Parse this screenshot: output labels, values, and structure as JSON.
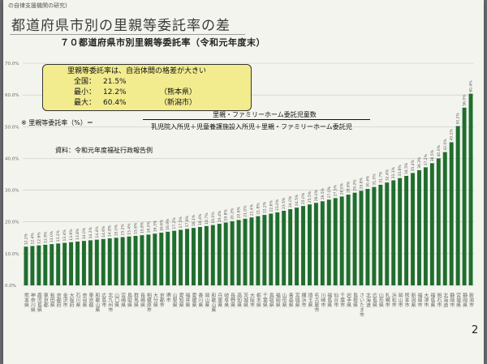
{
  "header": {
    "crumb": "の自律支援機関の研究)",
    "title": "都道府県市別の里親等委託率の差"
  },
  "callout": {
    "heading": "里親等委託率は、自治体間の格差が大きい",
    "rows": [
      {
        "key": "全国：",
        "value": "21.5%",
        "note": ""
      },
      {
        "key": "最小：",
        "value": "12.2%",
        "note": "（熊本県）"
      },
      {
        "key": "最大：",
        "value": "60.4%",
        "note": "（新潟市）"
      }
    ]
  },
  "formula": {
    "lhs": "※ 里親等委託率（%）＝",
    "numerator": "里親・ファミリーホーム委託児童数",
    "denominator": "乳児院入所児＋児童養護施設入所児＋里親・ファミリーホーム委託児"
  },
  "source": "資料：令和元年度福祉行政報告例",
  "page_number": "2",
  "colors": {
    "bar": "#1f6e2e",
    "callout": "#f2ec8f"
  },
  "chart_data": {
    "type": "bar",
    "title": "７０都道府県市別里親等委託率（令和元年度末）",
    "ylim": [
      0,
      70
    ],
    "ytick_labels": [
      "0.0%",
      "10.0%",
      "20.0%",
      "30.0%",
      "40.0%",
      "50.0%",
      "60.0%",
      "70.0%"
    ],
    "grid": true,
    "categories": [
      "熊本県",
      "神奈川県",
      "鹿児島県",
      "東京都",
      "秋田県",
      "京都府",
      "金沢市",
      "大阪府",
      "石川県",
      "奈良県",
      "東京都",
      "和歌山県",
      "広島市",
      "北九州市",
      "山口県",
      "宮崎県",
      "鳥取県",
      "群馬県",
      "長崎県",
      "相模原市",
      "大分県",
      "京都市",
      "堺市",
      "山梨県",
      "愛知県",
      "福井県",
      "愛媛県",
      "香川県",
      "岡山県",
      "和歌山県",
      "兵庫県",
      "岐阜県",
      "長野県",
      "高知県",
      "茨城県",
      "大阪市",
      "栃木県",
      "千葉県",
      "鳥取県",
      "福岡県",
      "山形県",
      "青森県",
      "宮城県",
      "横浜市",
      "埼玉県",
      "名古屋市",
      "川崎市",
      "福島県",
      "仙台市",
      "千葉市",
      "岩手県",
      "島根県",
      "さいたま市",
      "北海道",
      "広島県",
      "山形県",
      "札幌市",
      "浜松市",
      "岡山市",
      "熊本市",
      "新潟県",
      "福岡市",
      "大津市",
      "福島県",
      "明石市",
      "北海道",
      "静岡市",
      "宮城県",
      "静岡県",
      "新潟市"
    ],
    "values": [
      12.2,
      12.4,
      12.6,
      12.8,
      13.0,
      13.2,
      13.4,
      13.6,
      13.8,
      14.0,
      14.2,
      14.4,
      14.6,
      14.8,
      15.0,
      15.2,
      15.4,
      15.6,
      15.8,
      16.0,
      16.3,
      16.6,
      16.9,
      17.2,
      17.5,
      17.8,
      18.1,
      18.4,
      18.7,
      19.0,
      19.4,
      19.8,
      20.2,
      20.6,
      21.0,
      21.4,
      21.8,
      22.2,
      22.6,
      23.0,
      23.5,
      24.0,
      24.5,
      25.0,
      25.5,
      26.0,
      26.5,
      27.0,
      27.5,
      28.0,
      28.6,
      29.2,
      29.8,
      30.4,
      31.0,
      31.7,
      32.4,
      33.1,
      33.8,
      34.5,
      35.4,
      36.3,
      37.2,
      38.5,
      40.0,
      42.0,
      45.1,
      50.2,
      56.0,
      60.4
    ],
    "data_labels": [
      "12.2%",
      "12.4%",
      "12.6%",
      "12.8%",
      "13.0%",
      "13.2%",
      "13.4%",
      "13.6%",
      "13.8%",
      "14.0%",
      "14.2%",
      "14.4%",
      "14.6%",
      "14.8%",
      "15.0%",
      "15.2%",
      "15.4%",
      "15.6%",
      "15.8%",
      "16.0%",
      "16.3%",
      "16.6%",
      "16.9%",
      "17.2%",
      "17.5%",
      "17.8%",
      "18.1%",
      "18.4%",
      "18.7%",
      "19.0%",
      "19.4%",
      "19.8%",
      "20.2%",
      "20.6%",
      "21.0%",
      "21.4%",
      "21.8%",
      "22.2%",
      "22.6%",
      "23.0%",
      "23.5%",
      "24.0%",
      "24.5%",
      "25.0%",
      "25.5%",
      "26.0%",
      "26.5%",
      "27.0%",
      "27.5%",
      "28.0%",
      "28.6%",
      "29.2%",
      "29.8%",
      "30.4%",
      "31.0%",
      "31.7%",
      "32.4%",
      "33.1%",
      "33.8%",
      "34.5%",
      "35.4%",
      "36.3%",
      "37.2%",
      "38.5%",
      "40.0%",
      "42.0%",
      "45.1%",
      "50.2%",
      "56.0%",
      "60.4%"
    ]
  }
}
